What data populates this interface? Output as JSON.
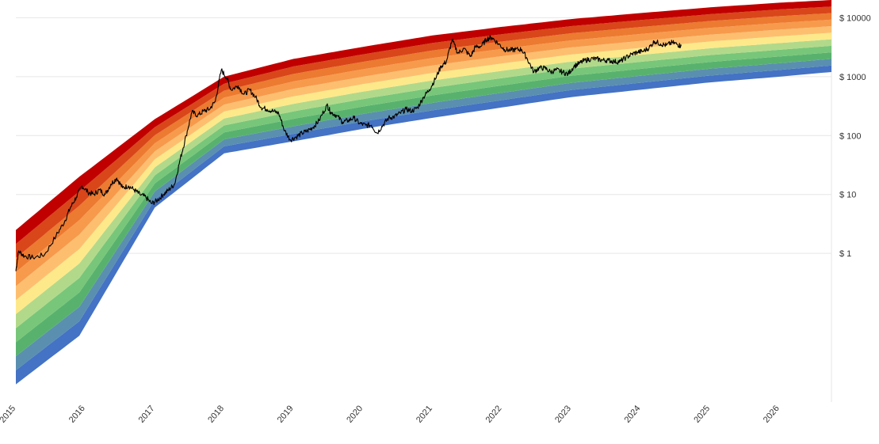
{
  "chart_data": {
    "type": "area",
    "title": "",
    "xlabel": "",
    "ylabel": "",
    "y_scale": "log",
    "ylim": [
      0.003,
      20000
    ],
    "xlim": [
      "2015-01-01",
      "2026-10-01"
    ],
    "grid": true,
    "y_ticks": [
      {
        "value": 10000,
        "label": "$ 10000"
      },
      {
        "value": 1000,
        "label": "$ 1000"
      },
      {
        "value": 100,
        "label": "$ 100"
      },
      {
        "value": 10,
        "label": "$ 10"
      },
      {
        "value": 1,
        "label": "$ 1"
      }
    ],
    "x_ticks": [
      {
        "date": "2015-01-01",
        "label": "2015"
      },
      {
        "date": "2016-01-01",
        "label": "2016"
      },
      {
        "date": "2017-01-01",
        "label": "2017"
      },
      {
        "date": "2018-01-01",
        "label": "2018"
      },
      {
        "date": "2019-01-01",
        "label": "2019"
      },
      {
        "date": "2020-01-01",
        "label": "2020"
      },
      {
        "date": "2021-01-01",
        "label": "2021"
      },
      {
        "date": "2022-01-01",
        "label": "2022"
      },
      {
        "date": "2023-01-01",
        "label": "2023"
      },
      {
        "date": "2024-01-01",
        "label": "2024"
      },
      {
        "date": "2025-01-01",
        "label": "2025"
      },
      {
        "date": "2026-01-01",
        "label": "2026"
      }
    ],
    "rainbow_band_colors": [
      "#4472c4",
      "#5a8fb0",
      "#58b26e",
      "#78c679",
      "#b2d98a",
      "#fee98a",
      "#fdbf6f",
      "#f79a4c",
      "#ec7a30",
      "#d9461a",
      "#c00000"
    ],
    "rainbow_band_boundaries": [
      {
        "date": "2015-01-01",
        "lower": 0.006,
        "upper": 2.5
      },
      {
        "date": "2015-12-01",
        "lower": 0.04,
        "upper": 20
      },
      {
        "date": "2017-01-01",
        "lower": 6,
        "upper": 190
      },
      {
        "date": "2018-01-01",
        "lower": 50,
        "upper": 1000
      },
      {
        "date": "2019-01-01",
        "lower": 80,
        "upper": 2000
      },
      {
        "date": "2020-01-01",
        "lower": 130,
        "upper": 3200
      },
      {
        "date": "2021-01-01",
        "lower": 200,
        "upper": 5000
      },
      {
        "date": "2022-01-01",
        "lower": 300,
        "upper": 7000
      },
      {
        "date": "2023-01-01",
        "lower": 450,
        "upper": 9500
      },
      {
        "date": "2024-01-01",
        "lower": 600,
        "upper": 12000
      },
      {
        "date": "2025-01-01",
        "lower": 800,
        "upper": 15000
      },
      {
        "date": "2026-01-01",
        "lower": 1000,
        "upper": 18000
      },
      {
        "date": "2026-10-01",
        "lower": 1200,
        "upper": 20000
      }
    ],
    "series": [
      {
        "color": "#000000",
        "x": [
          "2015-01-01",
          "2015-01-15",
          "2015-02-15",
          "2015-04-01",
          "2015-06-01",
          "2015-08-01",
          "2015-09-15",
          "2015-10-15",
          "2015-11-15",
          "2015-12-15",
          "2016-01-15",
          "2016-02-15",
          "2016-03-15",
          "2016-04-15",
          "2016-05-15",
          "2016-06-15",
          "2016-07-15",
          "2016-08-15",
          "2016-09-15",
          "2016-10-15",
          "2016-11-15",
          "2016-12-15",
          "2017-01-15",
          "2017-02-15",
          "2017-03-15",
          "2017-04-15",
          "2017-05-15",
          "2017-06-15",
          "2017-07-15",
          "2017-08-15",
          "2017-09-15",
          "2017-10-15",
          "2017-11-15",
          "2017-12-17",
          "2018-01-15",
          "2018-02-06",
          "2018-03-15",
          "2018-04-15",
          "2018-05-15",
          "2018-06-15",
          "2018-07-15",
          "2018-08-15",
          "2018-09-15",
          "2018-10-15",
          "2018-11-15",
          "2018-12-15",
          "2019-01-15",
          "2019-02-15",
          "2019-03-15",
          "2019-04-15",
          "2019-05-15",
          "2019-06-26",
          "2019-07-15",
          "2019-08-15",
          "2019-09-15",
          "2019-10-15",
          "2019-11-15",
          "2019-12-15",
          "2020-01-15",
          "2020-02-15",
          "2020-03-15",
          "2020-04-15",
          "2020-05-15",
          "2020-06-15",
          "2020-07-15",
          "2020-08-15",
          "2020-09-15",
          "2020-10-15",
          "2020-11-15",
          "2020-12-15",
          "2021-01-15",
          "2021-02-15",
          "2021-03-15",
          "2021-04-14",
          "2021-05-15",
          "2021-06-15",
          "2021-07-20",
          "2021-08-15",
          "2021-09-15",
          "2021-10-15",
          "2021-11-10",
          "2021-12-15",
          "2022-01-15",
          "2022-02-15",
          "2022-03-15",
          "2022-04-15",
          "2022-05-15",
          "2022-06-18",
          "2022-07-15",
          "2022-08-15",
          "2022-09-15",
          "2022-10-15",
          "2022-11-15",
          "2022-12-15",
          "2023-01-15",
          "2023-02-15",
          "2023-03-15",
          "2023-04-15",
          "2023-05-15",
          "2023-06-15",
          "2023-07-15",
          "2023-08-15",
          "2023-09-15",
          "2023-10-15",
          "2023-11-15",
          "2023-12-15",
          "2024-01-15",
          "2024-02-15",
          "2024-03-14",
          "2024-04-15",
          "2024-05-15",
          "2024-06-15",
          "2024-07-15",
          "2024-08-01"
        ],
        "y": [
          0.5,
          1.1,
          0.9,
          0.85,
          0.95,
          2,
          3.5,
          6,
          9,
          14,
          11,
          10,
          12,
          10,
          15,
          19,
          13,
          14,
          12,
          10,
          9,
          7,
          8,
          10,
          12,
          15,
          40,
          100,
          250,
          220,
          260,
          280,
          380,
          1300,
          950,
          600,
          700,
          500,
          600,
          450,
          300,
          280,
          260,
          240,
          120,
          85,
          95,
          110,
          120,
          140,
          180,
          330,
          250,
          220,
          170,
          180,
          200,
          160,
          150,
          150,
          110,
          150,
          200,
          210,
          240,
          280,
          260,
          300,
          450,
          600,
          900,
          1500,
          1800,
          4200,
          2500,
          3000,
          2200,
          3200,
          3300,
          4400,
          4600,
          3600,
          2900,
          2800,
          2900,
          2900,
          2000,
          1200,
          1400,
          1400,
          1200,
          1300,
          1200,
          1100,
          1500,
          1700,
          1900,
          2000,
          2000,
          1900,
          1900,
          1800,
          1800,
          2100,
          2400,
          2600,
          2700,
          3100,
          4000,
          3600,
          3400,
          3800,
          3500,
          3300
        ]
      }
    ]
  }
}
